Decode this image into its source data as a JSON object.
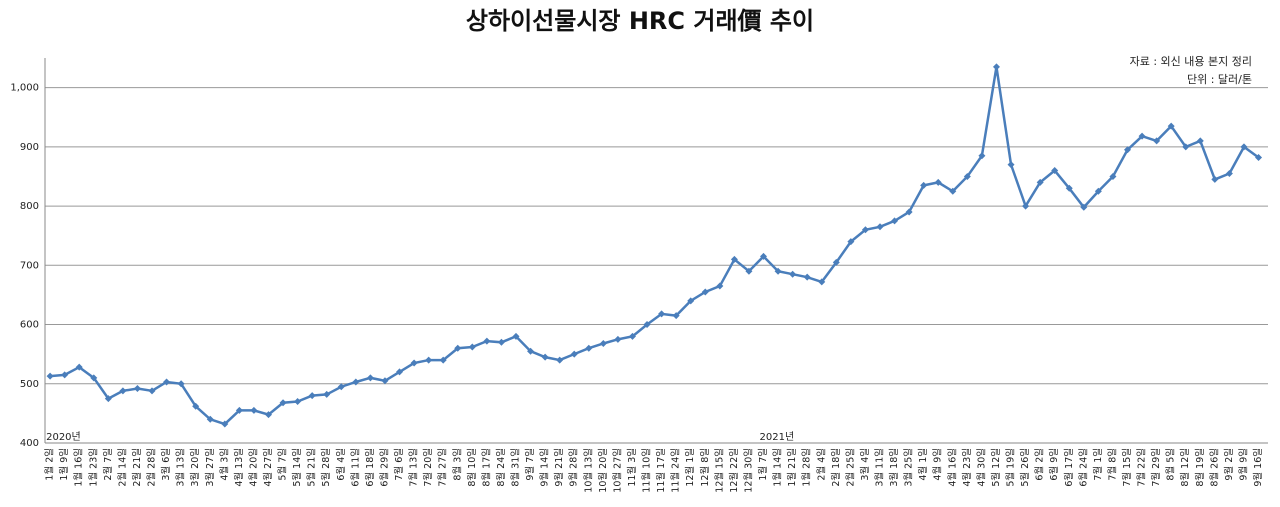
{
  "chart_data": {
    "type": "line",
    "title": "상하이선물시장 HRC 거래價 추이",
    "annotations": [
      "자료 : 외신 내용 본지 정리",
      "단위 : 달러/톤"
    ],
    "year_labels": [
      "2020년",
      "2021년"
    ],
    "categories": [
      "1월 2일",
      "1월 9일",
      "1월 16일",
      "1월 23일",
      "2월 7일",
      "2월 14일",
      "2월 21일",
      "2월 28일",
      "3월 6일",
      "3월 13일",
      "3월 20일",
      "3월 27일",
      "4월 3일",
      "4월 13일",
      "4월 20일",
      "4월 27일",
      "5월 7일",
      "5월 14일",
      "5월 21일",
      "5월 28일",
      "6월 4일",
      "6월 11일",
      "6월 18일",
      "6월 29일",
      "7월 6일",
      "7월 13일",
      "7월 20일",
      "7월 27일",
      "8월 3일",
      "8월 10일",
      "8월 17일",
      "8월 24일",
      "8월 31일",
      "9월 7일",
      "9월 14일",
      "9월 21일",
      "9월 28일",
      "10월 13일",
      "10월 20일",
      "10월 27일",
      "11월 3일",
      "11월 10일",
      "11월 17일",
      "11월 24일",
      "12월 1일",
      "12월 8일",
      "12월 15일",
      "12월 22일",
      "12월 30일",
      "1월 7일",
      "1월 14일",
      "1월 21일",
      "1월 28일",
      "2월 4일",
      "2월 18일",
      "2월 25일",
      "3월 4일",
      "3월 11일",
      "3월 18일",
      "3월 25일",
      "4월 1일",
      "4월 9일",
      "4월 16일",
      "4월 23일",
      "4월 30일",
      "5월 12일",
      "5월 19일",
      "5월 26일",
      "6월 2일",
      "6월 9일",
      "6월 17일",
      "6월 24일",
      "7월 1일",
      "7월 8일",
      "7월 15일",
      "7월 22일",
      "7월 29일",
      "8월 5일",
      "8월 12일",
      "8월 19일",
      "8월 26일",
      "9월 2일",
      "9월 9일",
      "9월 16일"
    ],
    "series": [
      {
        "name": "HRC",
        "color": "#4a7ebb",
        "values": [
          513,
          515,
          528,
          510,
          475,
          488,
          492,
          488,
          503,
          500,
          462,
          440,
          432,
          455,
          455,
          448,
          468,
          470,
          480,
          482,
          495,
          503,
          510,
          505,
          520,
          535,
          540,
          540,
          560,
          562,
          572,
          570,
          580,
          555,
          545,
          540,
          550,
          560,
          568,
          575,
          580,
          600,
          618,
          615,
          640,
          655,
          665,
          710,
          690,
          715,
          690,
          685,
          680,
          672,
          705,
          740,
          760,
          765,
          775,
          790,
          835,
          840,
          825,
          850,
          885,
          1035,
          870,
          800,
          840,
          860,
          830,
          798,
          825,
          850,
          895,
          918,
          910,
          935,
          900,
          910,
          845,
          855,
          900,
          882
        ]
      }
    ],
    "ylim": [
      400,
      1050
    ],
    "yticks": [
      400,
      500,
      600,
      700,
      800,
      900,
      {
        "value": 1000,
        "label": "1,000"
      }
    ],
    "grid": true
  }
}
